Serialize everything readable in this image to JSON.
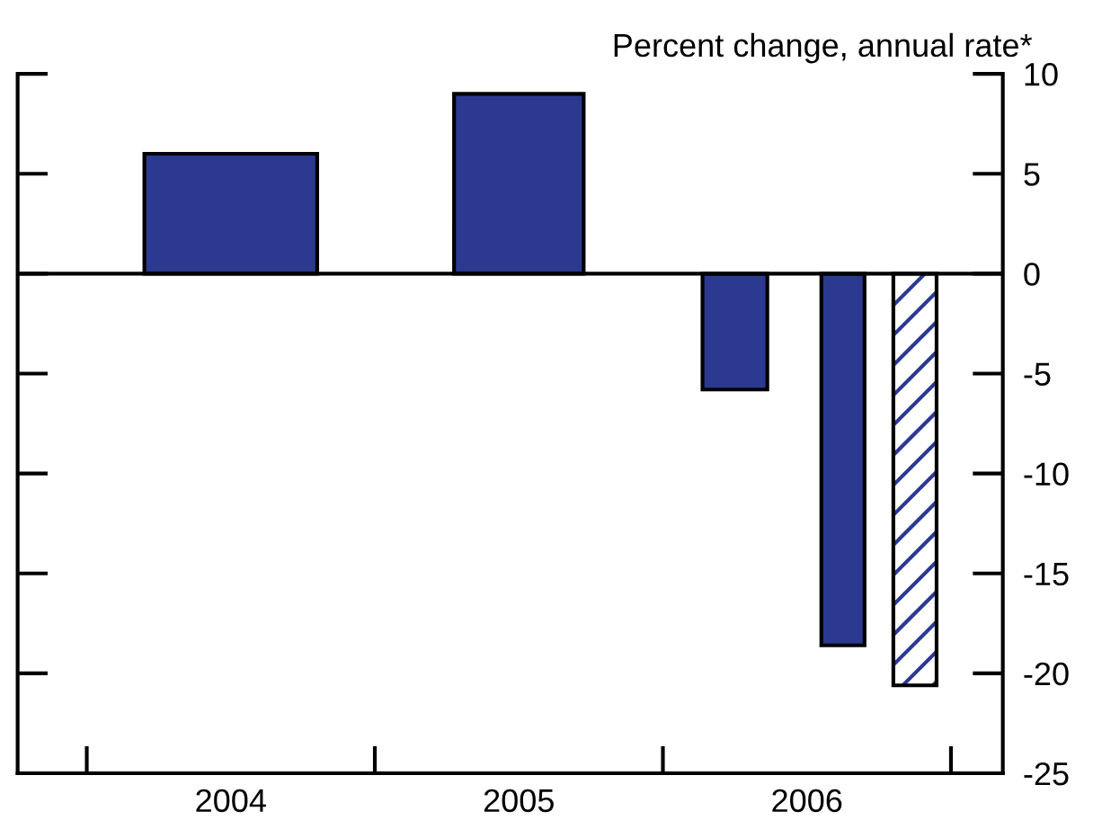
{
  "chart_data": {
    "type": "bar",
    "ylabel": "Percent change, annual rate*",
    "x": [
      2004.5,
      2005.5,
      2006.25,
      2006.625,
      2006.875
    ],
    "series": [
      {
        "color": "#2b3990",
        "values": [
          6.0,
          9.0,
          -5.8,
          -18.6,
          null
        ]
      },
      {
        "color": "#2b3990",
        "values": [
          null,
          null,
          null,
          null,
          -20.6
        ]
      }
    ],
    "xlim": [
      2003.76,
      2007.18
    ],
    "xticks": [
      {
        "value": 2004,
        "label": null
      },
      {
        "value": 2005,
        "label": null
      },
      {
        "value": 2006,
        "label": null
      },
      {
        "value": 2007,
        "label": null
      },
      {
        "value": 2004.5,
        "label": "2004"
      },
      {
        "value": 2005.5,
        "label": "2005"
      },
      {
        "value": 2006.5,
        "label": "2006"
      }
    ],
    "ylim": [
      -25,
      10
    ],
    "yticks": [
      -25,
      -20,
      -15,
      -10,
      -5,
      0,
      5,
      10
    ],
    "ref_lines": [
      {
        "axis": "y",
        "value": 0,
        "label": null
      }
    ],
    "grid": false,
    "legend": false
  }
}
